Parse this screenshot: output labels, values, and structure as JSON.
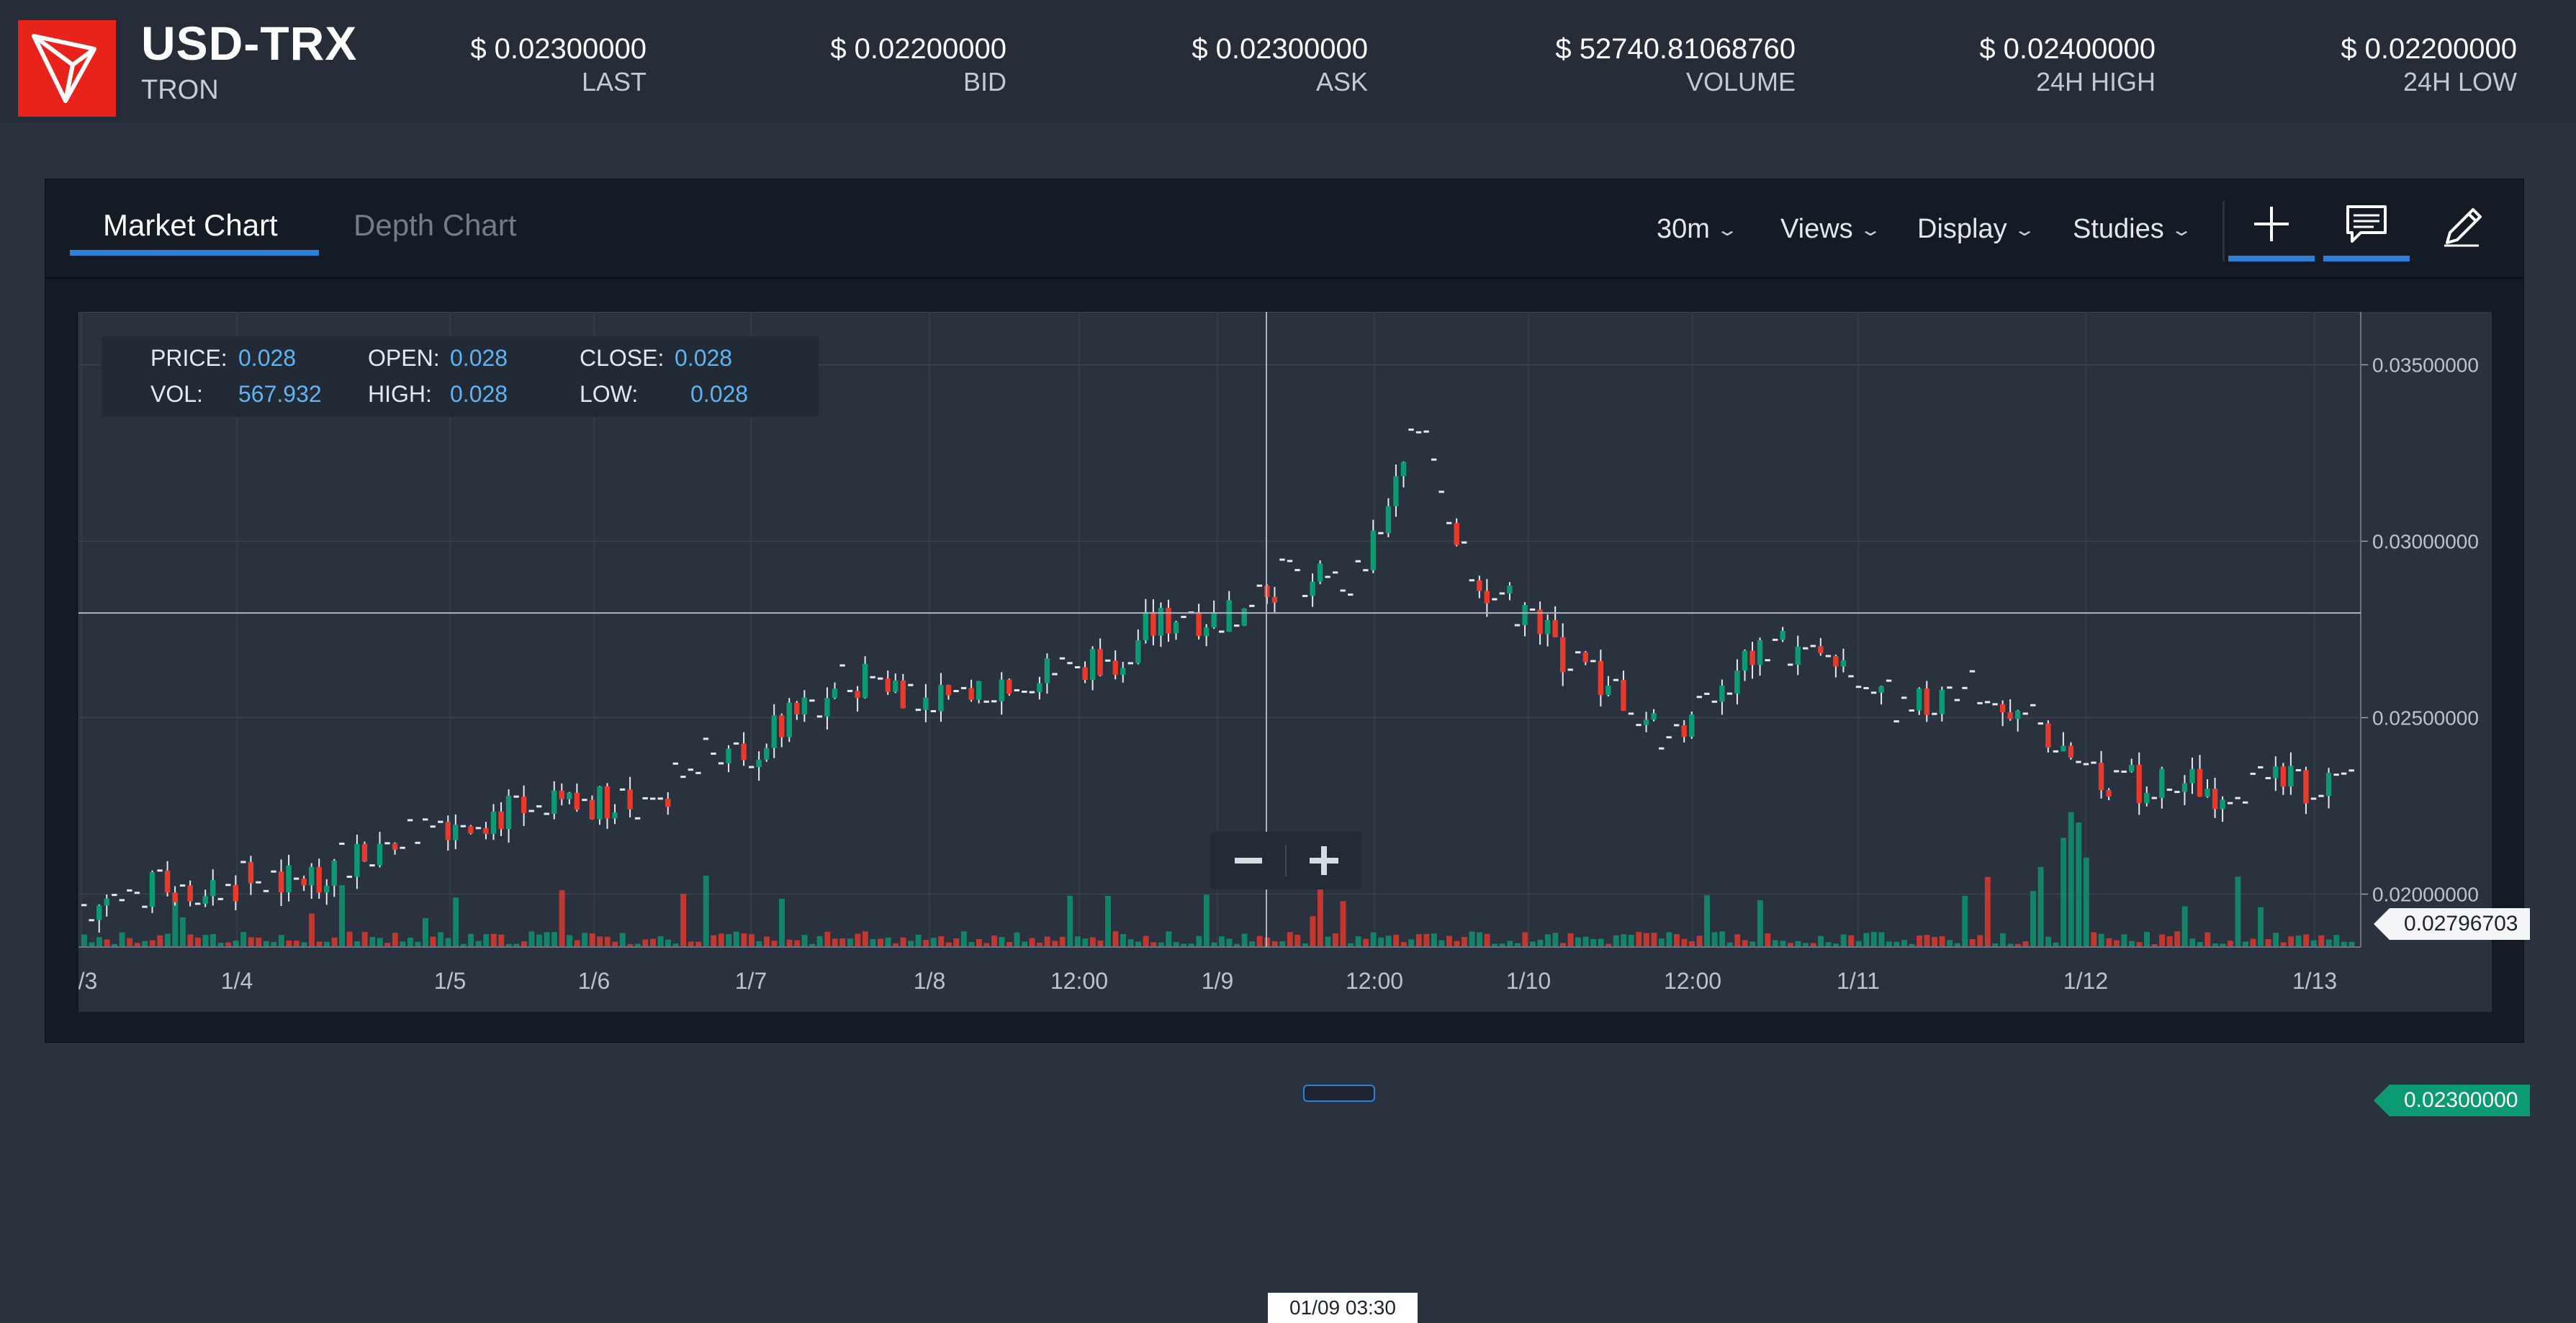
{
  "header": {
    "pair": "USD-TRX",
    "coin": "TRON",
    "stats": [
      {
        "value": "$ 0.02300000",
        "label": "LAST"
      },
      {
        "value": "$ 0.02200000",
        "label": "BID"
      },
      {
        "value": "$ 0.02300000",
        "label": "ASK"
      },
      {
        "value": "$ 52740.81068760",
        "label": "VOLUME"
      },
      {
        "value": "$ 0.02400000",
        "label": "24H HIGH"
      },
      {
        "value": "$ 0.02200000",
        "label": "24H LOW"
      }
    ]
  },
  "tabs": {
    "market": "Market Chart",
    "depth": "Depth Chart"
  },
  "toolbar": {
    "interval": "30m",
    "views": "Views",
    "display": "Display",
    "studies": "Studies"
  },
  "crosshair": {
    "price_label": "PRICE:",
    "price": "0.028",
    "open_label": "OPEN:",
    "open": "0.028",
    "close_label": "CLOSE:",
    "close": "0.028",
    "vol_label": "VOL:",
    "vol": "567.932",
    "high_label": "HIGH:",
    "high": "0.028",
    "low_label": "LOW:",
    "low": "0.028",
    "time": "01/09 03:30",
    "price_tag": "0.02796703"
  },
  "current_price_tag": "0.02300000",
  "colors": {
    "up": "#0c9a72",
    "down": "#e8392a",
    "accent": "#2e7fd8"
  },
  "chart_data": {
    "type": "candlestick",
    "interval": "30m",
    "y_ticks": [
      "0.02000000",
      "0.02500000",
      "0.03000000",
      "0.03500000"
    ],
    "x_ticks": [
      "1/3",
      "1/4",
      "1/5",
      "1/6",
      "1/7",
      "1/8",
      "12:00",
      "1/9",
      "12:00",
      "1/10",
      "12:00",
      "1/11",
      "1/12",
      "1/13"
    ],
    "crosshair_price": 0.02796703,
    "current_price": 0.023,
    "price_path": [
      0.0197,
      0.0198,
      0.0201,
      0.0202,
      0.0203,
      0.0204,
      0.0203,
      0.0207,
      0.0212,
      0.0215,
      0.022,
      0.0222,
      0.0223,
      0.0223,
      0.0224,
      0.0225,
      0.0226,
      0.023,
      0.024,
      0.0238,
      0.0245,
      0.0252,
      0.026,
      0.0262,
      0.0258,
      0.0255,
      0.0258,
      0.0262,
      0.0262,
      0.0265,
      0.0268,
      0.0275,
      0.028,
      0.0278,
      0.0285,
      0.029,
      0.0288,
      0.0287,
      0.031,
      0.0335,
      0.03,
      0.0285,
      0.028,
      0.0268,
      0.0262,
      0.0255,
      0.0245,
      0.025,
      0.0262,
      0.0272,
      0.0268,
      0.0262,
      0.0258,
      0.0252,
      0.0254,
      0.0262,
      0.025,
      0.0248,
      0.0238,
      0.0233,
      0.023,
      0.0232,
      0.023,
      0.0232,
      0.023,
      0.0232,
      0.023
    ]
  }
}
